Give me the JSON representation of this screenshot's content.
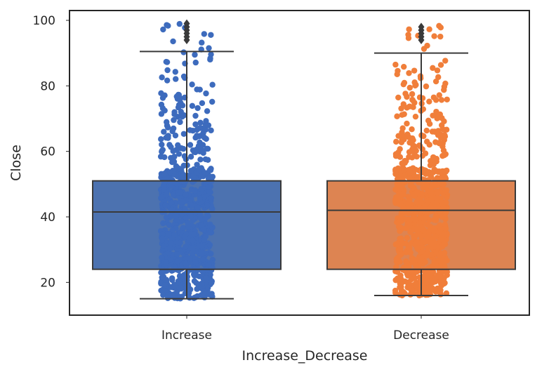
{
  "chart_data": {
    "type": "box",
    "title": "",
    "xlabel": "Increase_Decrease",
    "ylabel": "Close",
    "categories": [
      "Increase",
      "Decrease"
    ],
    "ylim": [
      10,
      103
    ],
    "yticks": [
      20,
      40,
      60,
      80,
      100
    ],
    "grid": false,
    "series": [
      {
        "name": "Increase",
        "color": "#4c72b0",
        "point_color": "#3d6bbd",
        "whisker_low": 15,
        "q1": 24,
        "median": 41.5,
        "q3": 51,
        "whisker_high": 90.5,
        "outliers": [
          94,
          95,
          96,
          97,
          98,
          99
        ],
        "strip_clusters": [
          {
            "low": 15,
            "high": 30,
            "count": 260
          },
          {
            "low": 30,
            "high": 55,
            "count": 420
          },
          {
            "low": 55,
            "high": 62,
            "count": 45
          },
          {
            "low": 62,
            "high": 78,
            "count": 70
          },
          {
            "low": 78,
            "high": 92,
            "count": 22
          },
          {
            "low": 92,
            "high": 100,
            "count": 9
          }
        ]
      },
      {
        "name": "Decrease",
        "color": "#dd8452",
        "point_color": "#f07e3a",
        "whisker_low": 16,
        "q1": 24,
        "median": 42,
        "q3": 51,
        "whisker_high": 90,
        "outliers": [
          94,
          95,
          96,
          97,
          98
        ],
        "strip_clusters": [
          {
            "low": 16,
            "high": 30,
            "count": 240
          },
          {
            "low": 30,
            "high": 55,
            "count": 400
          },
          {
            "low": 55,
            "high": 62,
            "count": 40
          },
          {
            "low": 62,
            "high": 78,
            "count": 75
          },
          {
            "low": 78,
            "high": 92,
            "count": 25
          },
          {
            "low": 92,
            "high": 100,
            "count": 10
          }
        ]
      }
    ]
  }
}
